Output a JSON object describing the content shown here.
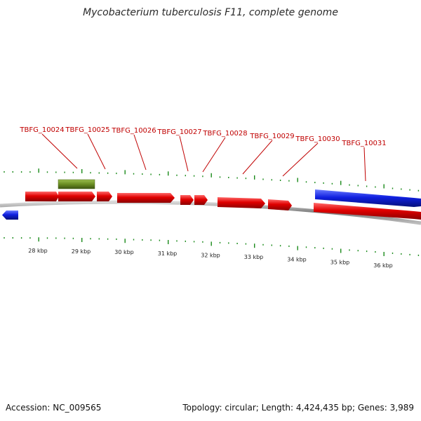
{
  "title": "Mycobacterium tuberculosis F11, complete genome",
  "footer": {
    "accession": "Accession: NC_009565",
    "summary": "Topology: circular; Length: 4,424,435 bp; Genes: 3,989"
  },
  "colors": {
    "forward_gene": "#e00000",
    "reverse_gene": "#1020e0",
    "feature_bar": "#6b8e23",
    "tick": "#1a8a1a",
    "backbone": "#777777",
    "label": "#c00000"
  },
  "scale": {
    "unit": "kbp",
    "major_ticks": [
      28,
      29,
      30,
      31,
      32,
      33,
      34,
      35,
      36
    ],
    "tick_labels": [
      "28 kbp",
      "29 kbp",
      "30 kbp",
      "31 kbp",
      "32 kbp",
      "33 kbp",
      "34 kbp",
      "35 kbp",
      "36 kbp"
    ]
  },
  "gene_labels": [
    "TBFG_10024",
    "TBFG_10025",
    "TBFG_10026",
    "TBFG_10027",
    "TBFG_10028",
    "TBFG_10029",
    "TBFG_10030",
    "TBFG_10031"
  ]
}
